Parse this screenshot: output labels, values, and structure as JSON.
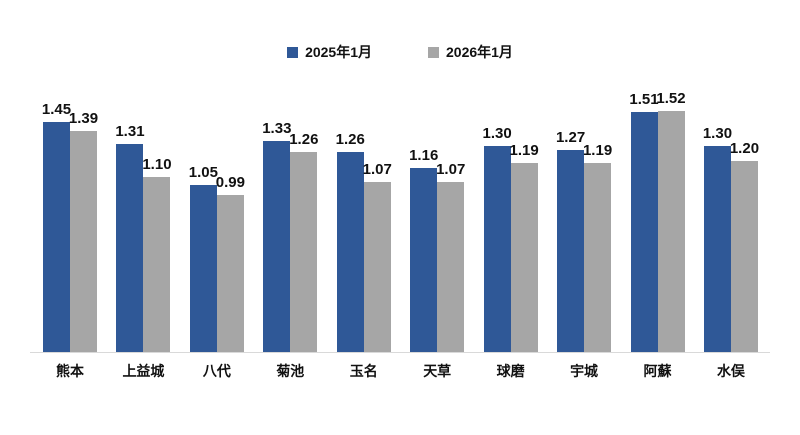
{
  "colors": {
    "series_2025": "#2f5897",
    "series_2026": "#a6a6a6",
    "axis_line": "#d9d9d9",
    "label_text": "#111111",
    "background": "#ffffff"
  },
  "chart_data": {
    "type": "bar",
    "title": "",
    "xlabel": "",
    "ylabel": "",
    "categories": [
      "熊本",
      "上益城",
      "八代",
      "菊池",
      "玉名",
      "天草",
      "球磨",
      "宇城",
      "阿蘇",
      "水俣"
    ],
    "series": [
      {
        "name": "2025年1月",
        "color": "#2f5897",
        "values": [
          1.45,
          1.31,
          1.05,
          1.33,
          1.26,
          1.16,
          1.3,
          1.27,
          1.51,
          1.3
        ]
      },
      {
        "name": "2026年1月",
        "color": "#a6a6a6",
        "values": [
          1.39,
          1.1,
          0.99,
          1.26,
          1.07,
          1.07,
          1.19,
          1.19,
          1.52,
          1.2
        ]
      }
    ],
    "value_label_decimals": 2,
    "ylim": [
      0,
      1.7
    ],
    "grid": false,
    "legend_position": "top"
  }
}
